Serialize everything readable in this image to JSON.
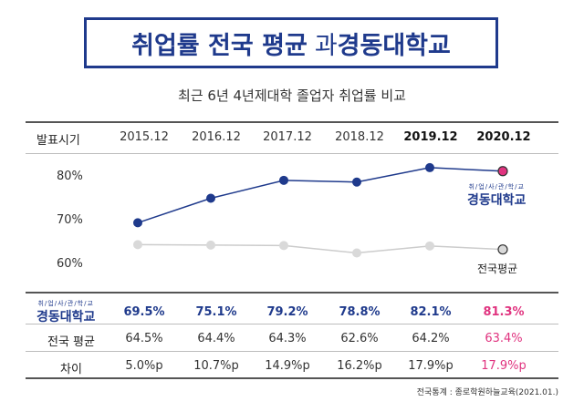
{
  "title": {
    "part1": "취업률 전국 평균",
    "part2": "과 ",
    "part3": "경동대학교"
  },
  "subtitle": "최근 6년 4년제대학 졸업자 취업률 비교",
  "header_label": "발표시기",
  "periods": [
    "2015.12",
    "2016.12",
    "2017.12",
    "2018.12",
    "2019.12",
    "2020.12"
  ],
  "logo": {
    "small": "취/업/사/관/학/교",
    "big": "경동대학교"
  },
  "national_label": "전국평균",
  "rows": {
    "school": [
      "69.5%",
      "75.1%",
      "79.2%",
      "78.8%",
      "82.1%",
      "81.3%"
    ],
    "national_label": "전국 평균",
    "national": [
      "64.5%",
      "64.4%",
      "64.3%",
      "62.6%",
      "64.2%",
      "63.4%"
    ],
    "diff_label": "차이",
    "diff": [
      "5.0%p",
      "10.7%p",
      "14.9%p",
      "16.2%p",
      "17.9%p",
      "17.9%p"
    ]
  },
  "footer": "전국통계 : 종로학원하늘교육(2021.01.)",
  "colors": {
    "navy": "#1f3a8c",
    "pink": "#e0337f",
    "gray_line": "#cccccc",
    "gray_point": "#d9d9d9"
  },
  "chart_data": {
    "type": "line",
    "x": [
      "2015.12",
      "2016.12",
      "2017.12",
      "2018.12",
      "2019.12",
      "2020.12"
    ],
    "series": [
      {
        "name": "경동대학교",
        "values": [
          69.5,
          75.1,
          79.2,
          78.8,
          82.1,
          81.3
        ]
      },
      {
        "name": "전국평균",
        "values": [
          64.5,
          64.4,
          64.3,
          62.6,
          64.2,
          63.4
        ]
      }
    ],
    "yticks": [
      "80%",
      "70%",
      "60%"
    ],
    "ylim": [
      58,
      84
    ],
    "grid": false,
    "legend": "right"
  }
}
